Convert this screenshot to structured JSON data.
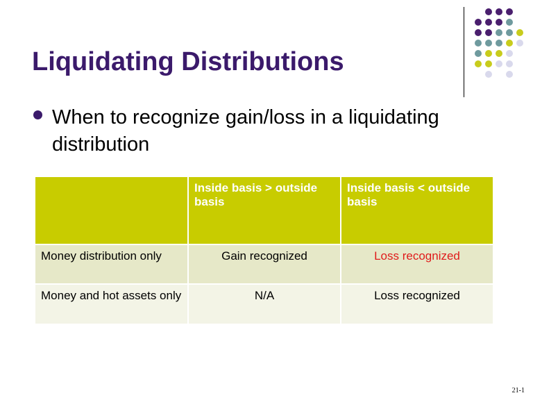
{
  "slide": {
    "title": "Liquidating Distributions",
    "bullet": "When to recognize gain/loss in a liquidating distribution",
    "page_number": "21-1"
  },
  "table": {
    "headers": [
      "",
      "Inside basis > outside basis",
      "Inside basis < outside basis"
    ],
    "rows": [
      {
        "label": "Money distribution only",
        "cells": [
          "Gain recognized",
          "Loss recognized"
        ]
      },
      {
        "label": "Money and hot assets only",
        "cells": [
          "N/A",
          "Loss recognized"
        ]
      }
    ]
  },
  "colors": {
    "title": "#3b1a6b",
    "header_bg": "#c8cc00",
    "row1_bg": "#e6e8c8",
    "row2_bg": "#f3f4e6",
    "loss_highlight": "#e01b1b",
    "dot_purple": "#4a1f6e",
    "dot_teal": "#6f9a9e",
    "dot_olive": "#c8cc1c",
    "dot_lavender": "#d9d9ec"
  }
}
